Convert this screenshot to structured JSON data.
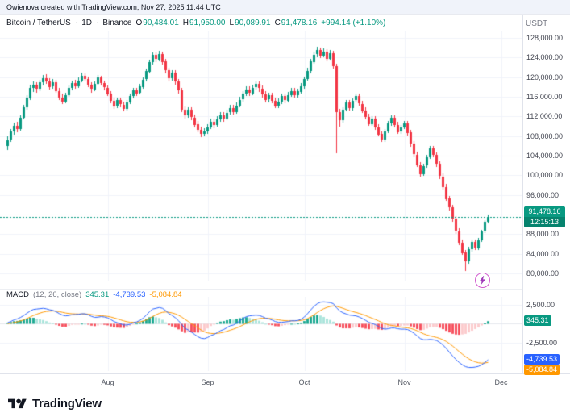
{
  "topbar": {
    "attribution": "Owienova created with TradingView.com, Nov 27, 2025 11:44 UTC"
  },
  "legend": {
    "symbol": "Bitcoin / TetherUS",
    "sep": "·",
    "interval": "1D",
    "exchange": "Binance",
    "ohlc_items": [
      {
        "k": "O",
        "v": "90,484.01"
      },
      {
        "k": "H",
        "v": "91,950.00"
      },
      {
        "k": "L",
        "v": "90,089.91"
      },
      {
        "k": "C",
        "v": "91,478.16"
      }
    ],
    "change": "+994.14 (+1.10%)"
  },
  "macd_legend": {
    "title": "MACD",
    "params": "(12, 26, close)",
    "hist": "345.31",
    "macd": "-4,739.53",
    "signal": "-5,084.84"
  },
  "axis": {
    "currency": "USDT"
  },
  "badges": {
    "price": "91,478.16",
    "countdown": "12:15:13",
    "histogram": "345.31",
    "macd": "-4,739.53",
    "signal": "-5,084.84"
  },
  "footer": {
    "brand": "TradingView"
  },
  "colors": {
    "up": "#089981",
    "down": "#f23645",
    "macd_line": "#2962ff",
    "signal_line": "#ff9800",
    "hist_up_grow": "#22ab94",
    "hist_up_fall": "#ace5dc",
    "hist_down_fall": "#f7525f",
    "hist_down_grow": "#fccbcd",
    "grid": "#f0f3fa",
    "zero_line": "#e6e8ee",
    "border": "#e0e3eb",
    "text": "#131722",
    "muted": "#787b86",
    "badge_blue": "#2962ff",
    "badge_orange": "#ff9800",
    "badge_teal": "#089981"
  },
  "chart_data": {
    "type": "candlestick",
    "title": "Bitcoin / TetherUS · 1D · Binance",
    "price_unit": "USDT",
    "current_price": 91478.16,
    "countdown": "12:15:13",
    "last_ohlc": {
      "open": 90484.01,
      "high": 91950.0,
      "low": 90089.91,
      "close": 91478.16,
      "change": 994.14,
      "change_pct": 1.1
    },
    "y_axis": {
      "min": 78500,
      "max": 129500,
      "tick_step": 4000,
      "ticks": [
        128000,
        124000,
        120000,
        116000,
        112000,
        108000,
        104000,
        100000,
        96000,
        92000,
        88000,
        84000,
        80000
      ]
    },
    "time_ticks": [
      {
        "label": "Aug",
        "candle_index": 31
      },
      {
        "label": "Sep",
        "candle_index": 62
      },
      {
        "label": "Oct",
        "candle_index": 92
      },
      {
        "label": "Nov",
        "candle_index": 123
      },
      {
        "label": "Dec",
        "candle_index": 153
      }
    ],
    "ohlc_fields": [
      "open",
      "high",
      "low",
      "close"
    ],
    "candles_ohlc": [
      [
        106000,
        108000,
        105200,
        107200
      ],
      [
        107200,
        109400,
        106700,
        108900
      ],
      [
        108900,
        110800,
        108300,
        110100
      ],
      [
        110100,
        110900,
        108800,
        109500
      ],
      [
        109500,
        112300,
        109100,
        111800
      ],
      [
        111800,
        114400,
        111500,
        113900
      ],
      [
        113900,
        116300,
        113400,
        115800
      ],
      [
        115800,
        118400,
        115300,
        117900
      ],
      [
        117900,
        119200,
        117100,
        118500
      ],
      [
        118500,
        119000,
        116900,
        117600
      ],
      [
        117600,
        119500,
        117200,
        118900
      ],
      [
        118900,
        120400,
        118300,
        119800
      ],
      [
        119800,
        120600,
        118700,
        119200
      ],
      [
        119200,
        119800,
        117500,
        118100
      ],
      [
        118100,
        119600,
        117700,
        119000
      ],
      [
        119000,
        119400,
        116800,
        117200
      ],
      [
        117200,
        117800,
        115400,
        115900
      ],
      [
        115900,
        116600,
        114500,
        115100
      ],
      [
        115100,
        116900,
        114800,
        116400
      ],
      [
        116400,
        118300,
        116000,
        117800
      ],
      [
        117800,
        119300,
        117300,
        118800
      ],
      [
        118800,
        119400,
        117600,
        118200
      ],
      [
        118200,
        119900,
        117800,
        119300
      ],
      [
        119300,
        120900,
        118900,
        120300
      ],
      [
        120300,
        120800,
        119100,
        119600
      ],
      [
        119600,
        120100,
        117900,
        118400
      ],
      [
        118400,
        119000,
        116900,
        117500
      ],
      [
        117500,
        119100,
        117100,
        118600
      ],
      [
        118600,
        120400,
        118200,
        119900
      ],
      [
        119900,
        120300,
        118300,
        118800
      ],
      [
        118800,
        119300,
        117300,
        117900
      ],
      [
        117900,
        118300,
        116100,
        116600
      ],
      [
        116600,
        117100,
        114700,
        115200
      ],
      [
        115200,
        115800,
        113500,
        114100
      ],
      [
        114100,
        115800,
        113700,
        115300
      ],
      [
        115300,
        115800,
        113900,
        114400
      ],
      [
        114400,
        115000,
        113000,
        113600
      ],
      [
        113600,
        115400,
        113200,
        114900
      ],
      [
        114900,
        116700,
        114500,
        116200
      ],
      [
        116200,
        117900,
        115800,
        117400
      ],
      [
        117400,
        117900,
        116200,
        116800
      ],
      [
        116800,
        118600,
        116400,
        118100
      ],
      [
        118100,
        120000,
        117700,
        119500
      ],
      [
        119500,
        121700,
        119100,
        121200
      ],
      [
        121200,
        123600,
        120800,
        123100
      ],
      [
        123100,
        125100,
        122700,
        124500
      ],
      [
        124500,
        125000,
        123000,
        123600
      ],
      [
        123600,
        125400,
        123200,
        124800
      ],
      [
        124800,
        125200,
        122600,
        123200
      ],
      [
        123200,
        123800,
        120800,
        121400
      ],
      [
        121400,
        122000,
        119200,
        119800
      ],
      [
        119800,
        121500,
        119400,
        120900
      ],
      [
        120900,
        121400,
        118500,
        119100
      ],
      [
        119100,
        119700,
        116700,
        117300
      ],
      [
        117300,
        117800,
        112800,
        113400
      ],
      [
        113400,
        114000,
        111600,
        112200
      ],
      [
        112200,
        113900,
        111800,
        113300
      ],
      [
        113300,
        113800,
        111200,
        111800
      ],
      [
        111800,
        112400,
        109800,
        110400
      ],
      [
        110400,
        111000,
        108700,
        109300
      ],
      [
        109300,
        109900,
        107700,
        108400
      ],
      [
        108400,
        109600,
        107900,
        108900
      ],
      [
        108900,
        110400,
        108500,
        109800
      ],
      [
        109800,
        111500,
        109400,
        110900
      ],
      [
        110900,
        111500,
        109600,
        110200
      ],
      [
        110200,
        112000,
        109800,
        111400
      ],
      [
        111400,
        112900,
        111000,
        112300
      ],
      [
        112300,
        112900,
        111000,
        111600
      ],
      [
        111600,
        113400,
        111200,
        112800
      ],
      [
        112800,
        114300,
        112400,
        113700
      ],
      [
        113700,
        114300,
        112400,
        112900
      ],
      [
        112900,
        114800,
        112500,
        114200
      ],
      [
        114200,
        116000,
        113800,
        115400
      ],
      [
        115400,
        117200,
        115000,
        116600
      ],
      [
        116600,
        118100,
        116200,
        117500
      ],
      [
        117500,
        118100,
        116200,
        116800
      ],
      [
        116800,
        118500,
        116400,
        117900
      ],
      [
        117900,
        119200,
        117500,
        118600
      ],
      [
        118600,
        119200,
        117100,
        117700
      ],
      [
        117700,
        118300,
        115900,
        116500
      ],
      [
        116500,
        117100,
        114800,
        115400
      ],
      [
        115400,
        116900,
        115000,
        116300
      ],
      [
        116300,
        116900,
        114700,
        115200
      ],
      [
        115200,
        115800,
        113600,
        114100
      ],
      [
        114100,
        115600,
        113700,
        115000
      ],
      [
        115000,
        116700,
        114600,
        116100
      ],
      [
        116100,
        116700,
        114800,
        115300
      ],
      [
        115300,
        117000,
        114900,
        116400
      ],
      [
        116400,
        117800,
        116000,
        117200
      ],
      [
        117200,
        117800,
        115800,
        116300
      ],
      [
        116300,
        117700,
        115900,
        117100
      ],
      [
        117100,
        118800,
        116700,
        118200
      ],
      [
        118200,
        120200,
        117800,
        119600
      ],
      [
        119600,
        121900,
        119200,
        121300
      ],
      [
        121300,
        123800,
        120900,
        123200
      ],
      [
        123200,
        125200,
        122800,
        124600
      ],
      [
        124600,
        126200,
        124100,
        125500
      ],
      [
        125500,
        126000,
        123900,
        124400
      ],
      [
        124400,
        125800,
        124000,
        125200
      ],
      [
        125200,
        125700,
        123300,
        123800
      ],
      [
        123800,
        125500,
        123400,
        124900
      ],
      [
        124900,
        125400,
        121800,
        122300
      ],
      [
        122300,
        122800,
        104500,
        112900
      ],
      [
        112900,
        113500,
        109900,
        111200
      ],
      [
        111200,
        113900,
        110800,
        113400
      ],
      [
        113400,
        115300,
        113000,
        114800
      ],
      [
        114800,
        115400,
        113200,
        113700
      ],
      [
        113700,
        115700,
        113300,
        115200
      ],
      [
        115200,
        116600,
        114800,
        116100
      ],
      [
        116100,
        116600,
        114100,
        114600
      ],
      [
        114600,
        115200,
        112700,
        113200
      ],
      [
        113200,
        113800,
        111400,
        111900
      ],
      [
        111900,
        112500,
        110000,
        110500
      ],
      [
        110500,
        112100,
        110100,
        111600
      ],
      [
        111600,
        112100,
        109300,
        109800
      ],
      [
        109800,
        110400,
        107900,
        108400
      ],
      [
        108400,
        109000,
        106800,
        107300
      ],
      [
        107300,
        109500,
        106900,
        109000
      ],
      [
        109000,
        111100,
        108600,
        110600
      ],
      [
        110600,
        112300,
        110200,
        111800
      ],
      [
        111800,
        112300,
        109800,
        110300
      ],
      [
        110300,
        110900,
        108400,
        108900
      ],
      [
        108900,
        110300,
        108500,
        109800
      ],
      [
        109800,
        111100,
        109400,
        110600
      ],
      [
        110600,
        111100,
        108200,
        108700
      ],
      [
        108700,
        109300,
        105900,
        106400
      ],
      [
        106400,
        107000,
        103700,
        104200
      ],
      [
        104200,
        104800,
        101600,
        102100
      ],
      [
        102100,
        102700,
        99800,
        100300
      ],
      [
        100300,
        102400,
        99900,
        101900
      ],
      [
        101900,
        104100,
        101500,
        103600
      ],
      [
        103600,
        105900,
        103200,
        105400
      ],
      [
        105400,
        105900,
        103600,
        104100
      ],
      [
        104100,
        104700,
        101800,
        102300
      ],
      [
        102300,
        102900,
        99300,
        99800
      ],
      [
        99800,
        100400,
        97100,
        97600
      ],
      [
        97600,
        98200,
        94700,
        95200
      ],
      [
        95200,
        95800,
        92900,
        93400
      ],
      [
        93400,
        94000,
        90600,
        91100
      ],
      [
        91100,
        91700,
        88100,
        88600
      ],
      [
        88600,
        89200,
        85800,
        86300
      ],
      [
        86300,
        86900,
        83700,
        84200
      ],
      [
        84200,
        84800,
        80600,
        82400
      ],
      [
        82400,
        85400,
        82000,
        84900
      ],
      [
        84900,
        86900,
        84500,
        86400
      ],
      [
        86400,
        86900,
        84700,
        85200
      ],
      [
        85200,
        87300,
        84800,
        86800
      ],
      [
        86800,
        88900,
        86400,
        88600
      ],
      [
        88600,
        90900,
        88200,
        90484
      ],
      [
        90484,
        91950,
        90090,
        91478.16
      ]
    ],
    "indicator": {
      "name": "MACD",
      "params": [
        12,
        26,
        "close"
      ],
      "last": {
        "histogram": 345.31,
        "macd": -4739.53,
        "signal": -5084.84
      },
      "y_ticks": [
        2500,
        -2500
      ],
      "y_range": [
        -6224,
        3564
      ],
      "histogram_rule": "macd_line - signal_line",
      "macd_line": [
        150,
        320,
        520,
        650,
        850,
        1100,
        1400,
        1700,
        1900,
        1950,
        2000,
        2050,
        1980,
        1850,
        1780,
        1600,
        1350,
        1150,
        1050,
        1100,
        1200,
        1220,
        1250,
        1330,
        1320,
        1180,
        980,
        850,
        880,
        950,
        900,
        780,
        560,
        300,
        150,
        0,
        -150,
        -150,
        -50,
        150,
        250,
        450,
        750,
        1150,
        1600,
        1950,
        2050,
        2150,
        2050,
        1750,
        1350,
        1100,
        800,
        400,
        -100,
        -600,
        -800,
        -1100,
        -1400,
        -1700,
        -1900,
        -1950,
        -1800,
        -1550,
        -1400,
        -1150,
        -900,
        -750,
        -500,
        -250,
        -150,
        100,
        400,
        700,
        950,
        1050,
        1100,
        1150,
        1100,
        950,
        750,
        650,
        500,
        300,
        200,
        200,
        250,
        300,
        400,
        400,
        450,
        600,
        900,
        1350,
        1850,
        2300,
        2650,
        2850,
        2900,
        2850,
        2800,
        2650,
        2100,
        1700,
        1450,
        1300,
        1150,
        1100,
        1050,
        900,
        700,
        450,
        200,
        50,
        -100,
        -350,
        -600,
        -700,
        -650,
        -550,
        -550,
        -650,
        -700,
        -700,
        -750,
        -950,
        -1250,
        -1600,
        -1950,
        -2100,
        -2100,
        -2050,
        -2100,
        -2200,
        -2450,
        -2800,
        -3250,
        -3750,
        -4250,
        -4700,
        -5100,
        -5400,
        -5650,
        -5750,
        -5750,
        -5700,
        -5600,
        -5400,
        -5100,
        -4739.53
      ],
      "signal_line": [
        30,
        88,
        174,
        269,
        385,
        528,
        703,
        902,
        1102,
        1271,
        1417,
        1544,
        1631,
        1675,
        1696,
        1677,
        1611,
        1519,
        1425,
        1360,
        1328,
        1307,
        1295,
        1302,
        1306,
        1281,
        1220,
        1146,
        1093,
        1064,
        1031,
        981,
        897,
        778,
        652,
        522,
        388,
        280,
        214,
        201,
        211,
        259,
        357,
        516,
        733,
        976,
        1191,
        1383,
        1516,
        1563,
        1520,
        1436,
        1309,
        1127,
        882,
        586,
        309,
        27,
        -259,
        -547,
        -818,
        -1044,
        -1195,
        -1266,
        -1293,
        -1264,
        -1191,
        -1103,
        -982,
        -836,
        -699,
        -539,
        -351,
        -141,
        77,
        272,
        438,
        580,
        684,
        737,
        740,
        722,
        678,
        602,
        522,
        458,
        416,
        393,
        394,
        395,
        406,
        445,
        536,
        699,
        929,
        1203,
        1492,
        1764,
        1991,
        2163,
        2290,
        2362,
        2310,
        2188,
        2040,
        1892,
        1744,
        1615,
        1502,
        1382,
        1246,
        1087,
        910,
        738,
        570,
        386,
        189,
        11,
        -121,
        -207,
        -276,
        -351,
        -421,
        -477,
        -532,
        -616,
        -743,
        -914,
        -1121,
        -1317,
        -1474,
        -1589,
        -1691,
        -1793,
        -1924,
        -2099,
        -2329,
        -2613,
        -2940,
        -3292,
        -3654,
        -4003,
        -4332,
        -4616,
        -4843,
        -5014,
        -5131,
        -5185,
        -5158,
        -5084.84
      ]
    }
  }
}
